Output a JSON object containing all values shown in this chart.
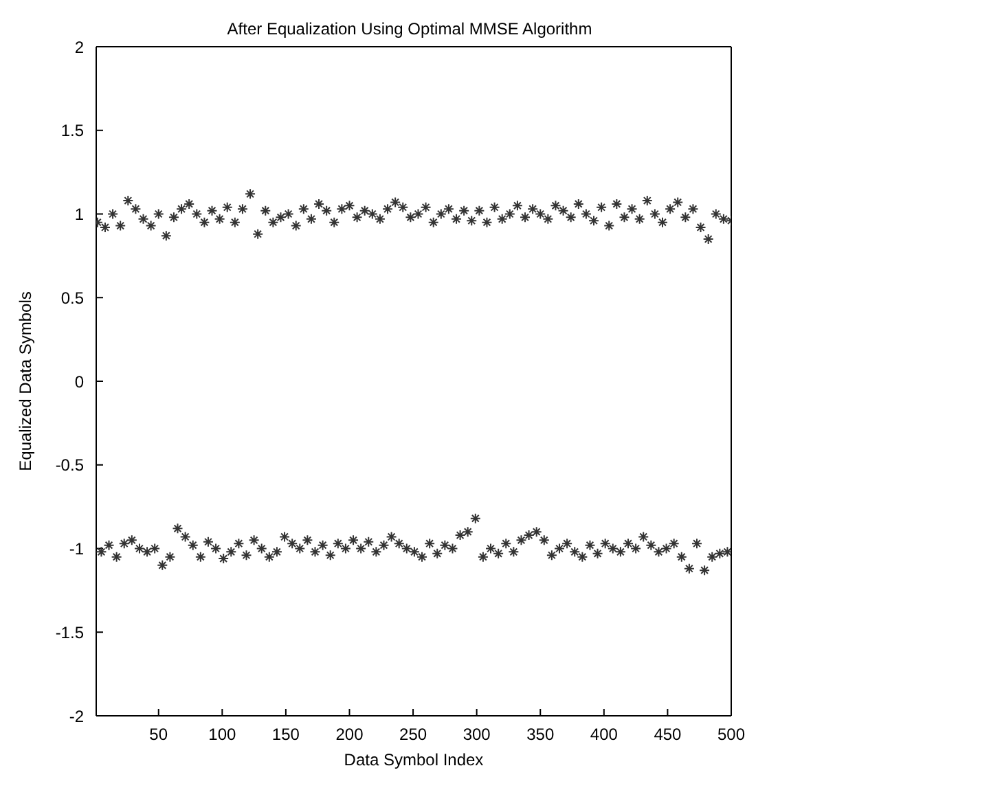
{
  "chart_data": {
    "type": "scatter",
    "title": "After Equalization Using Optimal MMSE Algorithm",
    "xlabel": "Data Symbol Index",
    "ylabel": "Equalized Data Symbols",
    "color": "#333333",
    "marker": "cross",
    "xlim": [
      1,
      500
    ],
    "xticks": [
      50,
      100,
      150,
      200,
      250,
      300,
      350,
      400,
      450,
      500
    ],
    "ylim": [
      -2,
      2
    ],
    "yticks": [
      -2,
      -1.5,
      -1,
      -0.5,
      0,
      0.5,
      1,
      1.5,
      2
    ],
    "x": [
      2,
      5,
      8,
      11,
      14,
      17,
      20,
      23,
      26,
      29,
      32,
      35,
      38,
      41,
      44,
      47,
      50,
      53,
      56,
      59,
      62,
      65,
      68,
      71,
      74,
      77,
      80,
      83,
      86,
      89,
      92,
      95,
      98,
      101,
      104,
      107,
      110,
      113,
      116,
      119,
      122,
      125,
      128,
      131,
      134,
      137,
      140,
      143,
      146,
      149,
      152,
      155,
      158,
      161,
      164,
      167,
      170,
      173,
      176,
      179,
      182,
      185,
      188,
      191,
      194,
      197,
      200,
      203,
      206,
      209,
      212,
      215,
      218,
      221,
      224,
      227,
      230,
      233,
      236,
      239,
      242,
      245,
      248,
      251,
      254,
      257,
      260,
      263,
      266,
      269,
      272,
      275,
      278,
      281,
      284,
      287,
      290,
      293,
      296,
      299,
      302,
      305,
      308,
      311,
      314,
      317,
      320,
      323,
      326,
      329,
      332,
      335,
      338,
      341,
      344,
      347,
      350,
      353,
      356,
      359,
      362,
      365,
      368,
      371,
      374,
      377,
      380,
      383,
      386,
      389,
      392,
      395,
      398,
      401,
      404,
      407,
      410,
      413,
      416,
      419,
      422,
      425,
      428,
      431,
      434,
      437,
      440,
      443,
      446,
      449,
      452,
      455,
      458,
      461,
      464,
      467,
      470,
      473,
      476,
      479,
      482,
      485,
      488,
      491,
      494,
      497,
      500
    ],
    "values": [
      0.95,
      -1.02,
      0.92,
      -0.98,
      1.0,
      -1.05,
      0.93,
      -0.97,
      1.08,
      -0.95,
      1.03,
      -1.0,
      0.97,
      -1.02,
      0.93,
      -1.0,
      1.0,
      -1.1,
      0.87,
      -1.05,
      0.98,
      -0.88,
      1.03,
      -0.93,
      1.06,
      -0.98,
      1.0,
      -1.05,
      0.95,
      -0.96,
      1.02,
      -1.0,
      0.97,
      -1.06,
      1.04,
      -1.02,
      0.95,
      -0.97,
      1.03,
      -1.04,
      1.12,
      -0.95,
      0.88,
      -1.0,
      1.02,
      -1.05,
      0.95,
      -1.02,
      0.98,
      -0.93,
      1.0,
      -0.97,
      0.93,
      -1.0,
      1.03,
      -0.95,
      0.97,
      -1.02,
      1.06,
      -0.98,
      1.02,
      -1.04,
      0.95,
      -0.97,
      1.03,
      -1.0,
      1.05,
      -0.95,
      0.98,
      -1.0,
      1.02,
      -0.96,
      1.0,
      -1.02,
      0.97,
      -0.98,
      1.03,
      -0.93,
      1.07,
      -0.97,
      1.04,
      -1.0,
      0.98,
      -1.02,
      1.0,
      -1.05,
      1.04,
      -0.97,
      0.95,
      -1.03,
      1.0,
      -0.98,
      1.03,
      -1.0,
      0.97,
      -0.92,
      1.02,
      -0.9,
      0.96,
      -0.82,
      1.02,
      -1.05,
      0.95,
      -1.0,
      1.04,
      -1.03,
      0.97,
      -0.97,
      1.0,
      -1.02,
      1.05,
      -0.95,
      0.98,
      -0.92,
      1.03,
      -0.9,
      1.0,
      -0.95,
      0.97,
      -1.04,
      1.05,
      -1.0,
      1.02,
      -0.97,
      0.98,
      -1.02,
      1.06,
      -1.05,
      1.0,
      -0.98,
      0.96,
      -1.03,
      1.04,
      -0.97,
      0.93,
      -1.0,
      1.06,
      -1.02,
      0.98,
      -0.97,
      1.03,
      -1.0,
      0.97,
      -0.93,
      1.08,
      -0.98,
      1.0,
      -1.02,
      0.95,
      -1.0,
      1.03,
      -0.97,
      1.07,
      -1.05,
      0.98,
      -1.12,
      1.03,
      -0.97,
      0.92,
      -1.13,
      0.85,
      -1.05,
      1.0,
      -1.03,
      0.97,
      -1.02,
      0.96
    ]
  }
}
